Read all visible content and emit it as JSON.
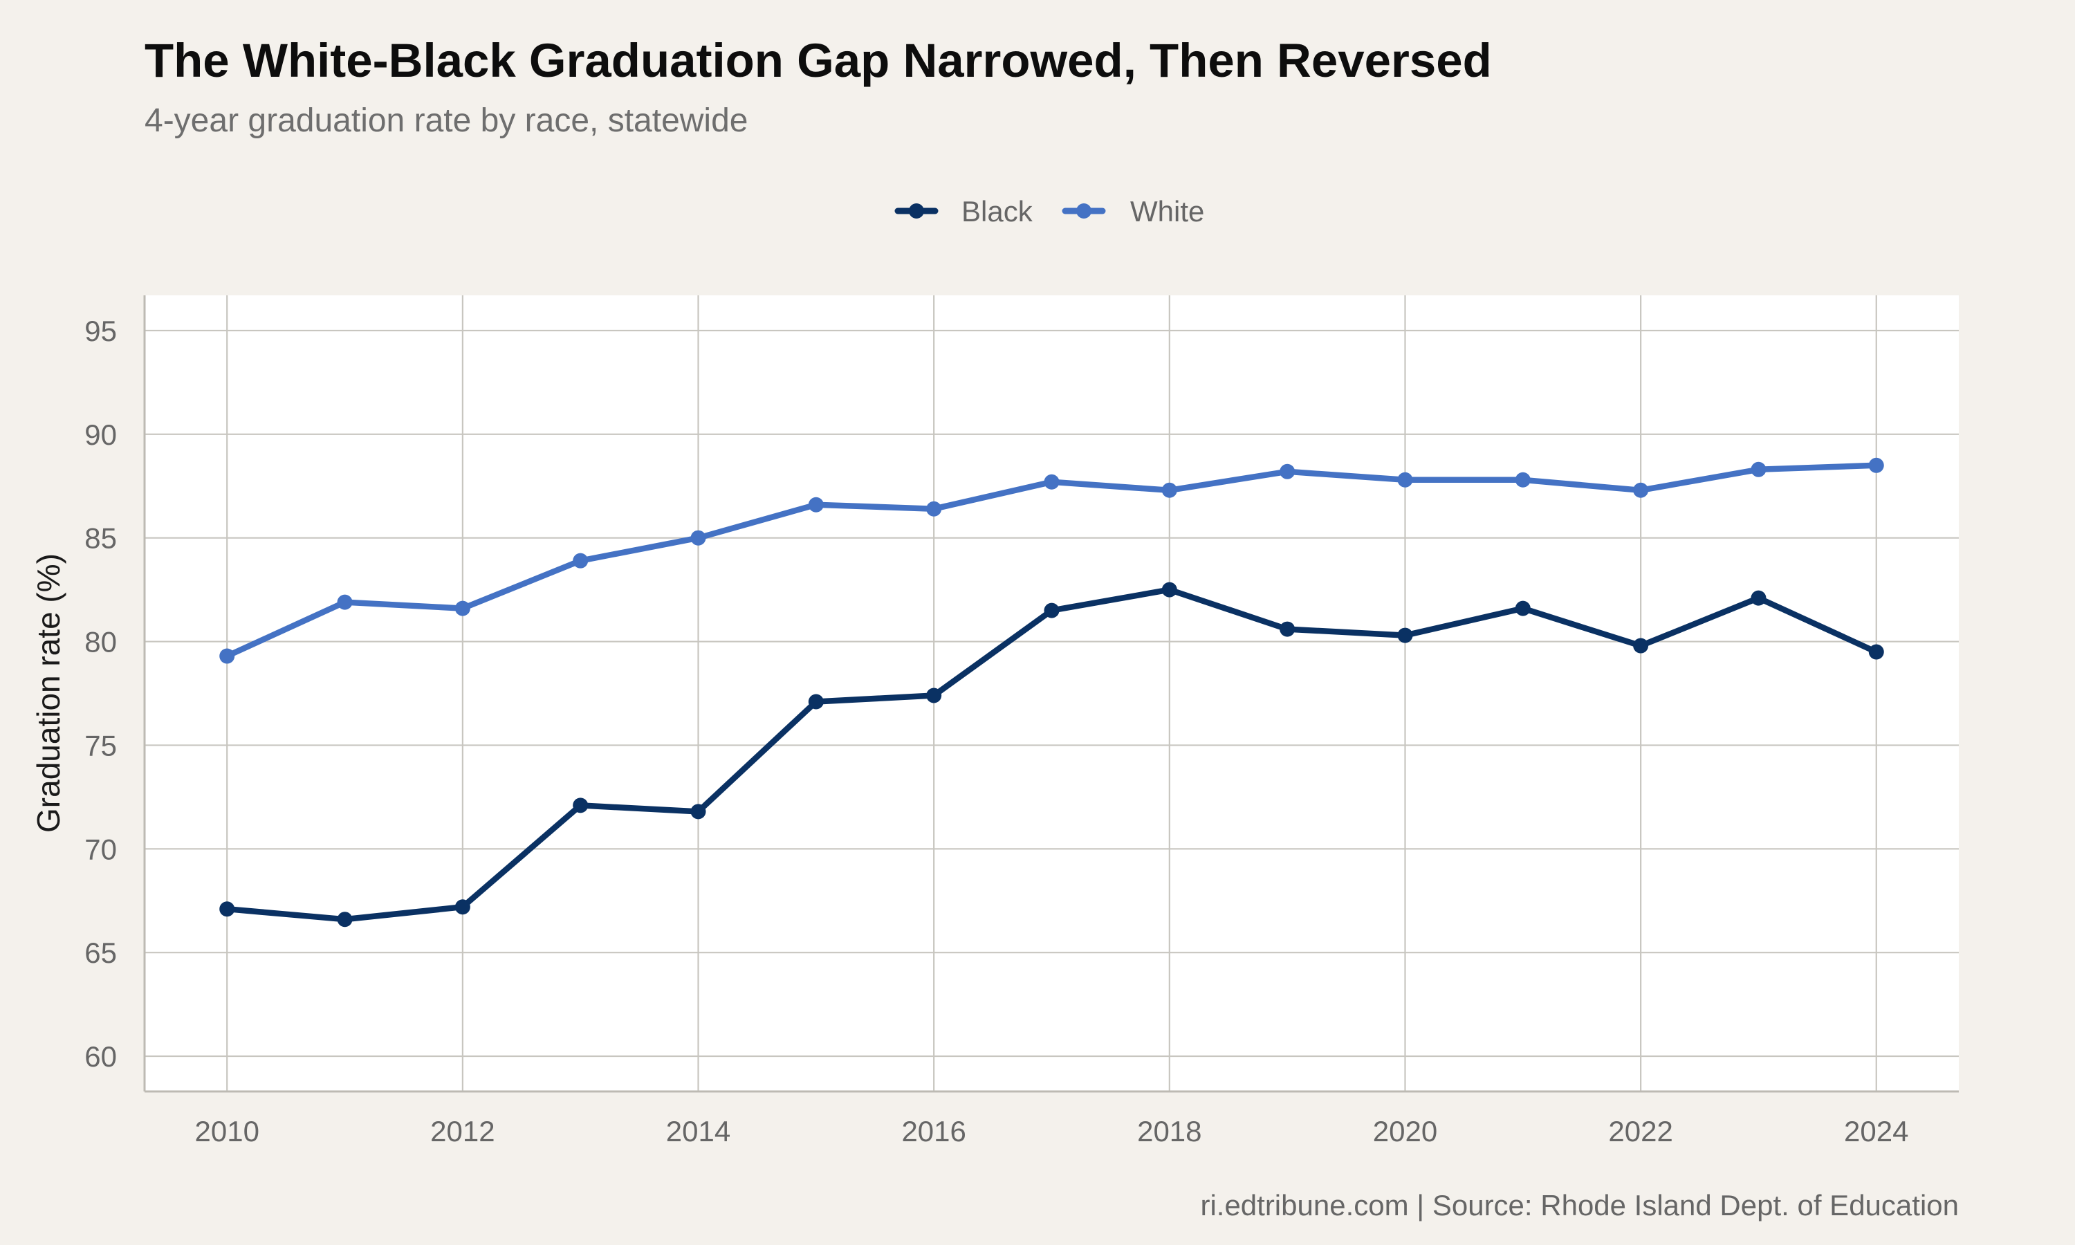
{
  "chart_data": {
    "type": "line",
    "title": "The White-Black Graduation Gap Narrowed, Then Reversed",
    "subtitle": "4-year graduation rate by race, statewide",
    "xlabel": "",
    "ylabel": "Graduation rate (%)",
    "caption": "ri.edtribune.com | Source: Rhode Island Dept. of Education",
    "x": [
      2010,
      2011,
      2012,
      2013,
      2014,
      2015,
      2016,
      2017,
      2018,
      2019,
      2020,
      2021,
      2022,
      2023,
      2024
    ],
    "xlim": [
      2009.3,
      2024.7
    ],
    "ylim": [
      58.3,
      96.7
    ],
    "x_ticks": [
      "2010",
      "2012",
      "2014",
      "2016",
      "2018",
      "2020",
      "2022",
      "2024"
    ],
    "x_tick_values": [
      2010,
      2012,
      2014,
      2016,
      2018,
      2020,
      2022,
      2024
    ],
    "y_ticks": [
      "60",
      "65",
      "70",
      "75",
      "80",
      "85",
      "90",
      "95"
    ],
    "y_tick_values": [
      60,
      65,
      70,
      75,
      80,
      85,
      90,
      95
    ],
    "grid": true,
    "legend_position": "top",
    "series": [
      {
        "name": "Black",
        "color": "#0a3163",
        "values": [
          67.1,
          66.6,
          67.2,
          72.1,
          71.8,
          77.1,
          77.4,
          81.5,
          82.5,
          80.6,
          80.3,
          81.6,
          79.8,
          82.1,
          79.5
        ]
      },
      {
        "name": "White",
        "color": "#4472c4",
        "values": [
          79.3,
          81.9,
          81.6,
          83.9,
          85.0,
          86.6,
          86.4,
          87.7,
          87.3,
          88.2,
          87.8,
          87.8,
          87.3,
          88.3,
          88.5
        ]
      }
    ]
  },
  "colors": {
    "background": "#f4f1ec",
    "panel": "#ffffff",
    "grid": "#c8c6c0",
    "axis_line": "#bdbab3"
  }
}
